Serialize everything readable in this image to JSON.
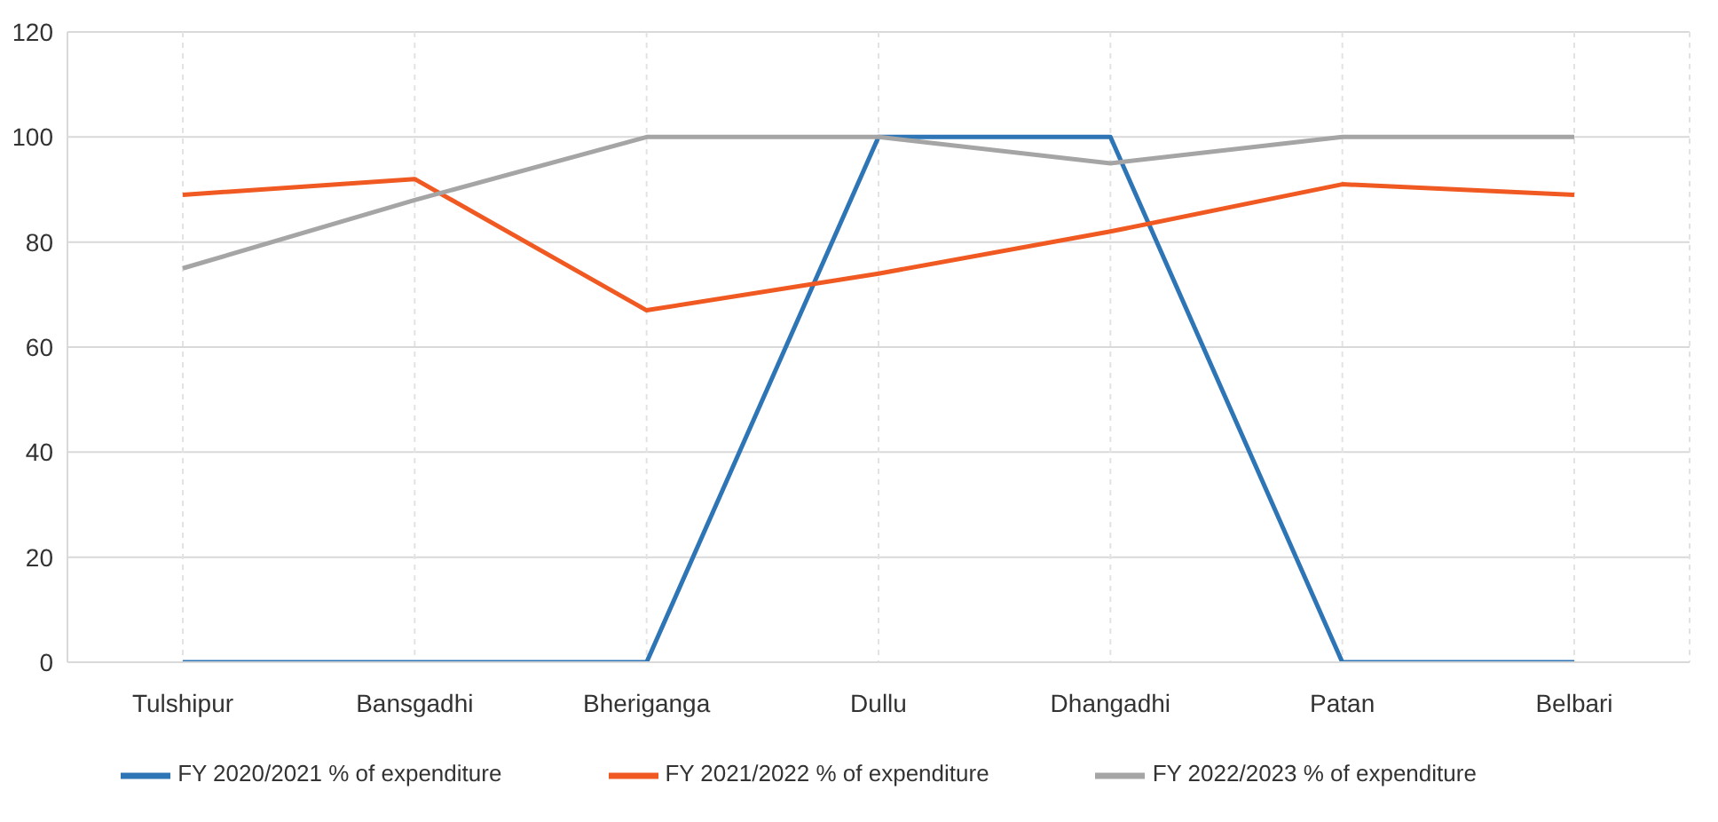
{
  "chart_data": {
    "type": "line",
    "categories": [
      "Tulshipur",
      "Bansgadhi",
      "Bheriganga",
      "Dullu",
      "Dhangadhi",
      "Patan",
      "Belbari"
    ],
    "series": [
      {
        "name": "FY 2020/2021 % of expenditure",
        "color": "#2e75b6",
        "values": [
          0,
          0,
          0,
          100,
          100,
          0,
          0
        ]
      },
      {
        "name": "FY 2021/2022 % of expenditure",
        "color": "#f05a22",
        "values": [
          89,
          92,
          67,
          74,
          82,
          91,
          89
        ]
      },
      {
        "name": "FY 2022/2023 % of expenditure",
        "color": "#a5a5a5",
        "values": [
          75,
          88,
          100,
          100,
          95,
          100,
          100
        ]
      }
    ],
    "ylim": [
      0,
      120
    ],
    "yticks": [
      0,
      20,
      40,
      60,
      80,
      100,
      120
    ],
    "grid": true,
    "legend": "bottom",
    "marker": "none",
    "line_style": "solid"
  }
}
